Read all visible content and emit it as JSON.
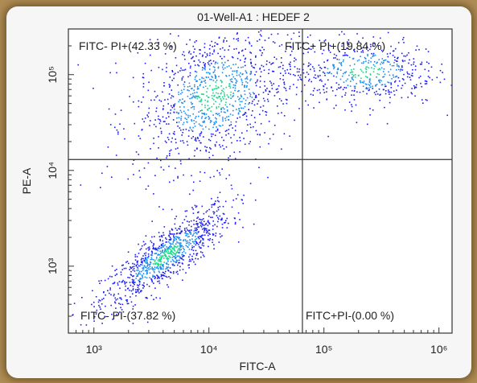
{
  "chart_data": {
    "type": "scatter",
    "title": "01-Well-A1 : HEDEF 2",
    "xlabel": "FITC-A",
    "ylabel": "PE-A",
    "x_scale": "log",
    "y_scale": "log",
    "xlim": [
      600,
      1300000
    ],
    "ylim": [
      200,
      300000
    ],
    "x_ticks": [
      {
        "label": "10³",
        "value": 1000
      },
      {
        "label": "10⁴",
        "value": 10000
      },
      {
        "label": "10⁵",
        "value": 100000
      },
      {
        "label": "10⁶",
        "value": 1000000
      }
    ],
    "y_ticks": [
      {
        "label": "10³",
        "value": 1000
      },
      {
        "label": "10⁴",
        "value": 10000
      },
      {
        "label": "10⁵",
        "value": 100000
      }
    ],
    "quadrant_gate": {
      "x": 65000,
      "y": 13000
    },
    "quadrants": [
      {
        "label": "FITC- PI+(42.33 %)",
        "position": "top-left",
        "percent": 42.33
      },
      {
        "label": "FITC+ PI+(19.84 %)",
        "position": "top-right",
        "percent": 19.84
      },
      {
        "label": "FITC- PI-(37.82 %)",
        "position": "bottom-left",
        "percent": 37.82
      },
      {
        "label": "FITC+PI-(0.00 %)",
        "position": "bottom-right",
        "percent": 0.0
      }
    ],
    "populations": [
      {
        "x": 4200,
        "y": 1300,
        "spread_x": 0.28,
        "spread_y": 0.2,
        "share": 0.38
      },
      {
        "x": 11000,
        "y": 60000,
        "spread_x": 0.35,
        "spread_y": 0.35,
        "share": 0.42
      },
      {
        "x": 220000,
        "y": 110000,
        "spread_x": 0.32,
        "spread_y": 0.18,
        "share": 0.2
      }
    ],
    "colors": {
      "low": "#1d1df0",
      "mid": "#1e8cf0",
      "high": "#18d88a"
    },
    "grid": false,
    "legend": "none"
  }
}
